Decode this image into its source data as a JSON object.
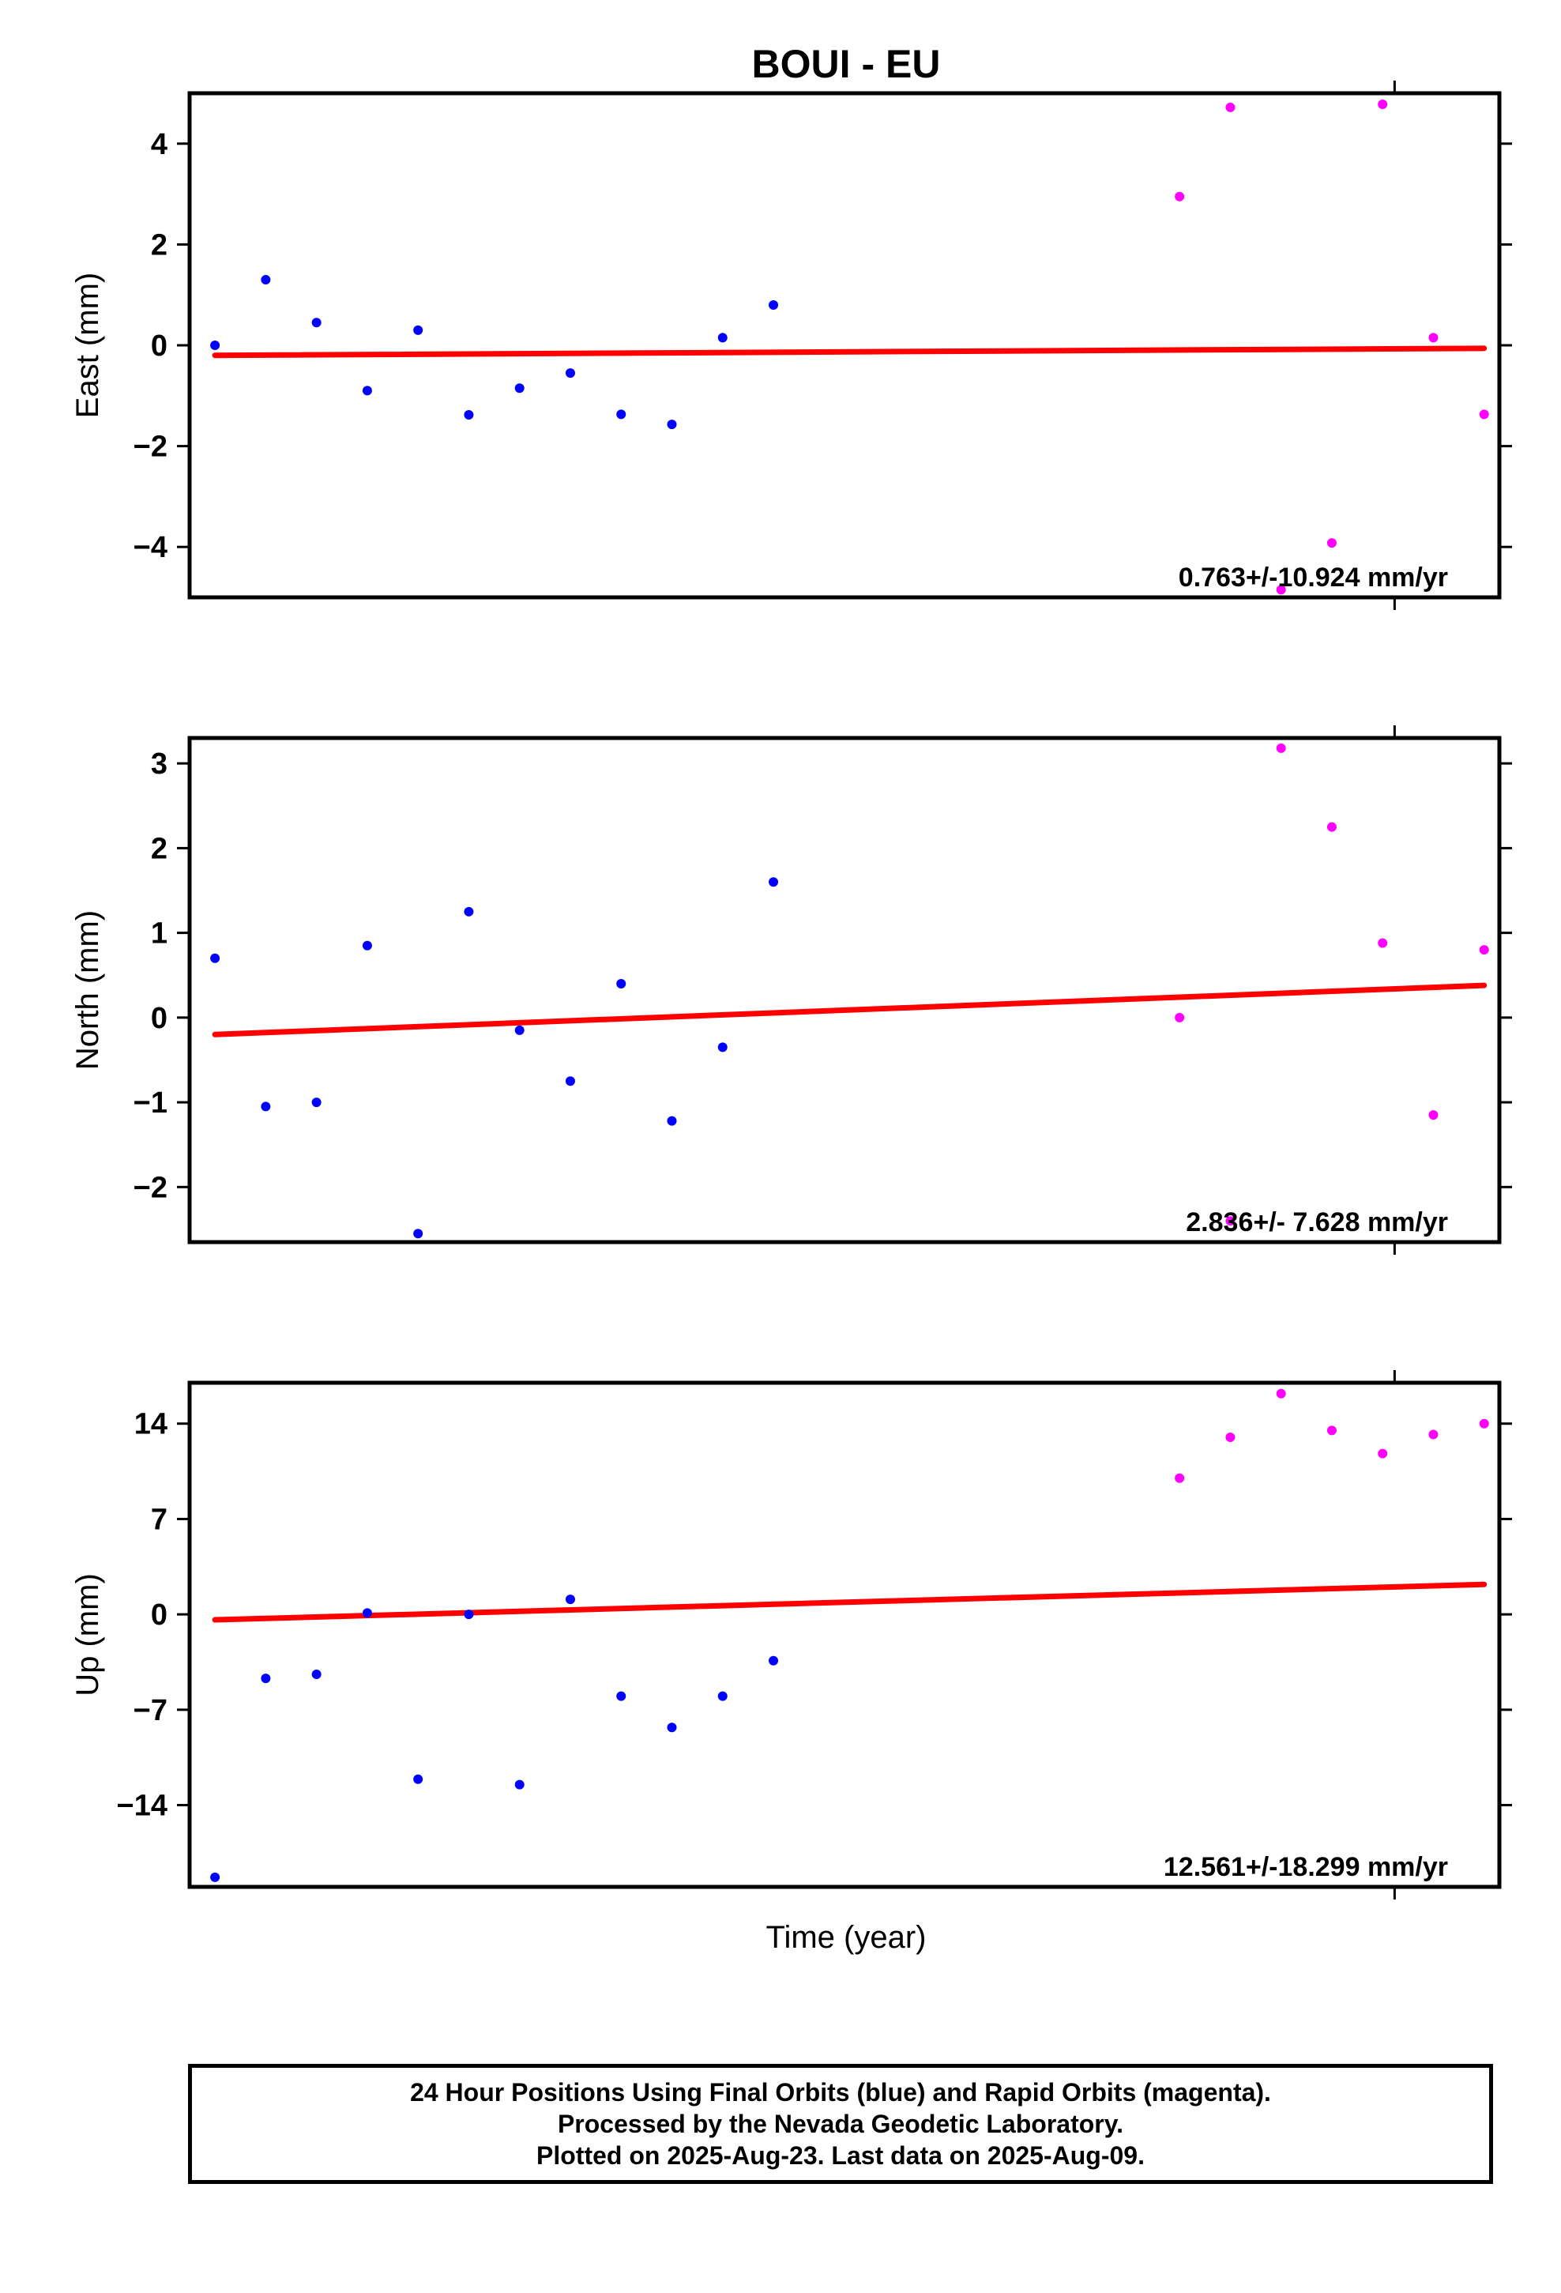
{
  "title": "BOUI - EU",
  "xlabel": "Time (year)",
  "footer": {
    "line1": "24 Hour Positions Using Final Orbits (blue) and Rapid Orbits (magenta).",
    "line2": "Processed by the Nevada Geodetic Laboratory.",
    "line3": "Plotted on 2025-Aug-23. Last data on 2025-Aug-09."
  },
  "colors": {
    "final": "#0000ff",
    "rapid": "#ff00ff",
    "trend": "#ff0000",
    "frame": "#000000"
  },
  "chart_data": [
    {
      "type": "scatter",
      "ylabel": "East (mm)",
      "ylim": [
        -5.0,
        5.0
      ],
      "yticks": [
        4,
        2,
        0,
        -2,
        -4
      ],
      "ytick_labels": [
        "4",
        "2",
        "0",
        "−2",
        "−4"
      ],
      "xlim": [
        -0.5,
        25.3
      ],
      "rate_label": "0.763+/-10.924 mm/yr",
      "series": [
        {
          "color": "final",
          "x": [
            0,
            1,
            2,
            3,
            4,
            5,
            6,
            7,
            8,
            9,
            10,
            11
          ],
          "y": [
            0.0,
            1.3,
            0.45,
            -0.9,
            0.3,
            -1.38,
            -0.85,
            -0.55,
            -1.37,
            -1.57,
            0.15,
            0.8
          ]
        },
        {
          "color": "rapid",
          "x": [
            19,
            20,
            21,
            22,
            23,
            24,
            25
          ],
          "y": [
            2.95,
            4.72,
            -4.85,
            -3.92,
            4.78,
            0.15,
            -1.37
          ]
        }
      ],
      "trend": {
        "x": [
          0,
          25
        ],
        "y": [
          -0.2,
          -0.06
        ]
      }
    },
    {
      "type": "scatter",
      "ylabel": "North (mm)",
      "ylim": [
        -2.65,
        3.3
      ],
      "yticks": [
        3,
        2,
        1,
        0,
        -1,
        -2
      ],
      "ytick_labels": [
        "3",
        "2",
        "1",
        "0",
        "−1",
        "−2"
      ],
      "xlim": [
        -0.5,
        25.3
      ],
      "rate_label": "2.836+/- 7.628 mm/yr",
      "series": [
        {
          "color": "final",
          "x": [
            0,
            1,
            2,
            3,
            4,
            5,
            6,
            7,
            8,
            9,
            10,
            11
          ],
          "y": [
            0.7,
            -1.05,
            -1.0,
            0.85,
            -2.55,
            1.25,
            -0.15,
            -0.75,
            0.4,
            -1.22,
            -0.35,
            1.6
          ]
        },
        {
          "color": "rapid",
          "x": [
            19,
            20,
            21,
            22,
            23,
            24,
            25
          ],
          "y": [
            0.0,
            -2.4,
            3.18,
            2.25,
            0.88,
            -1.15,
            0.8
          ]
        }
      ],
      "trend": {
        "x": [
          0,
          25
        ],
        "y": [
          -0.2,
          0.38
        ]
      }
    },
    {
      "type": "scatter",
      "ylabel": "Up (mm)",
      "ylim": [
        -20.0,
        17.0
      ],
      "yticks": [
        14,
        7,
        0,
        -7,
        -14
      ],
      "ytick_labels": [
        "14",
        "7",
        "0",
        "−7",
        "−14"
      ],
      "xlim": [
        -0.5,
        25.3
      ],
      "rate_label": "12.561+/-18.299 mm/yr",
      "series": [
        {
          "color": "final",
          "x": [
            0,
            1,
            2,
            3,
            4,
            5,
            6,
            7,
            8,
            9,
            10,
            11
          ],
          "y": [
            -19.3,
            -4.7,
            -4.4,
            0.1,
            -12.1,
            0.0,
            -12.5,
            1.1,
            -6.0,
            -8.3,
            -6.0,
            -3.4
          ]
        },
        {
          "color": "rapid",
          "x": [
            19,
            20,
            21,
            22,
            23,
            24,
            25
          ],
          "y": [
            10.0,
            13.0,
            16.2,
            13.5,
            11.8,
            13.2,
            14.0
          ]
        }
      ],
      "trend": {
        "x": [
          0,
          25
        ],
        "y": [
          -0.4,
          2.2
        ]
      }
    }
  ]
}
